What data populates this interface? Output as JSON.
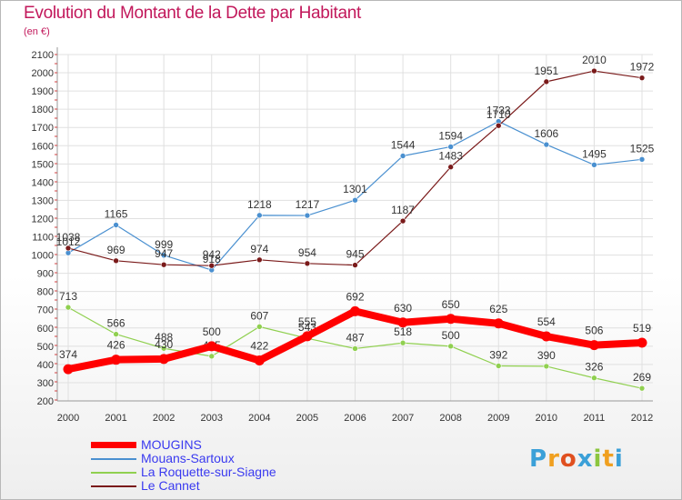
{
  "chart_data": {
    "type": "line",
    "title": "Evolution du Montant de la Dette par Habitant",
    "subtitle": "(en €)",
    "x": [
      "2000",
      "2001",
      "2002",
      "2003",
      "2004",
      "2005",
      "2006",
      "2007",
      "2008",
      "2009",
      "2010",
      "2011",
      "2012"
    ],
    "y_ticks": [
      200,
      300,
      400,
      500,
      600,
      700,
      800,
      900,
      1000,
      1100,
      1200,
      1300,
      1400,
      1500,
      1600,
      1700,
      1800,
      1900,
      2000,
      2100
    ],
    "ylim": [
      200,
      2100
    ],
    "grid": true,
    "series": [
      {
        "name": "MOUGINS",
        "color": "#ff0000",
        "values": [
          374,
          426,
          430,
          500,
          422,
          555,
          692,
          630,
          650,
          625,
          554,
          506,
          519
        ]
      },
      {
        "name": "Mouans-Sartoux",
        "color": "#4a90d0",
        "values": [
          1012,
          1165,
          999,
          918,
          1218,
          1217,
          1301,
          1544,
          1594,
          1733,
          1606,
          1495,
          1525
        ]
      },
      {
        "name": "La Roquette-sur-Siagne",
        "color": "#90d050",
        "values": [
          713,
          566,
          488,
          445,
          607,
          543,
          487,
          518,
          500,
          392,
          390,
          326,
          269
        ]
      },
      {
        "name": "Le Cannet",
        "color": "#7a1a1a",
        "values": [
          1038,
          969,
          947,
          942,
          974,
          954,
          945,
          1187,
          1483,
          1710,
          1951,
          2010,
          1972
        ]
      }
    ]
  },
  "legend": {
    "color": "#3a3af0"
  },
  "logo": {
    "letters": [
      "P",
      "r",
      "o",
      "x",
      "i",
      "t",
      "i"
    ],
    "colors": [
      "#3ba0d8",
      "#f0a020",
      "#e05020",
      "#3ba0d8",
      "#8cc63f",
      "#f0a020",
      "#3ba0d8"
    ]
  }
}
